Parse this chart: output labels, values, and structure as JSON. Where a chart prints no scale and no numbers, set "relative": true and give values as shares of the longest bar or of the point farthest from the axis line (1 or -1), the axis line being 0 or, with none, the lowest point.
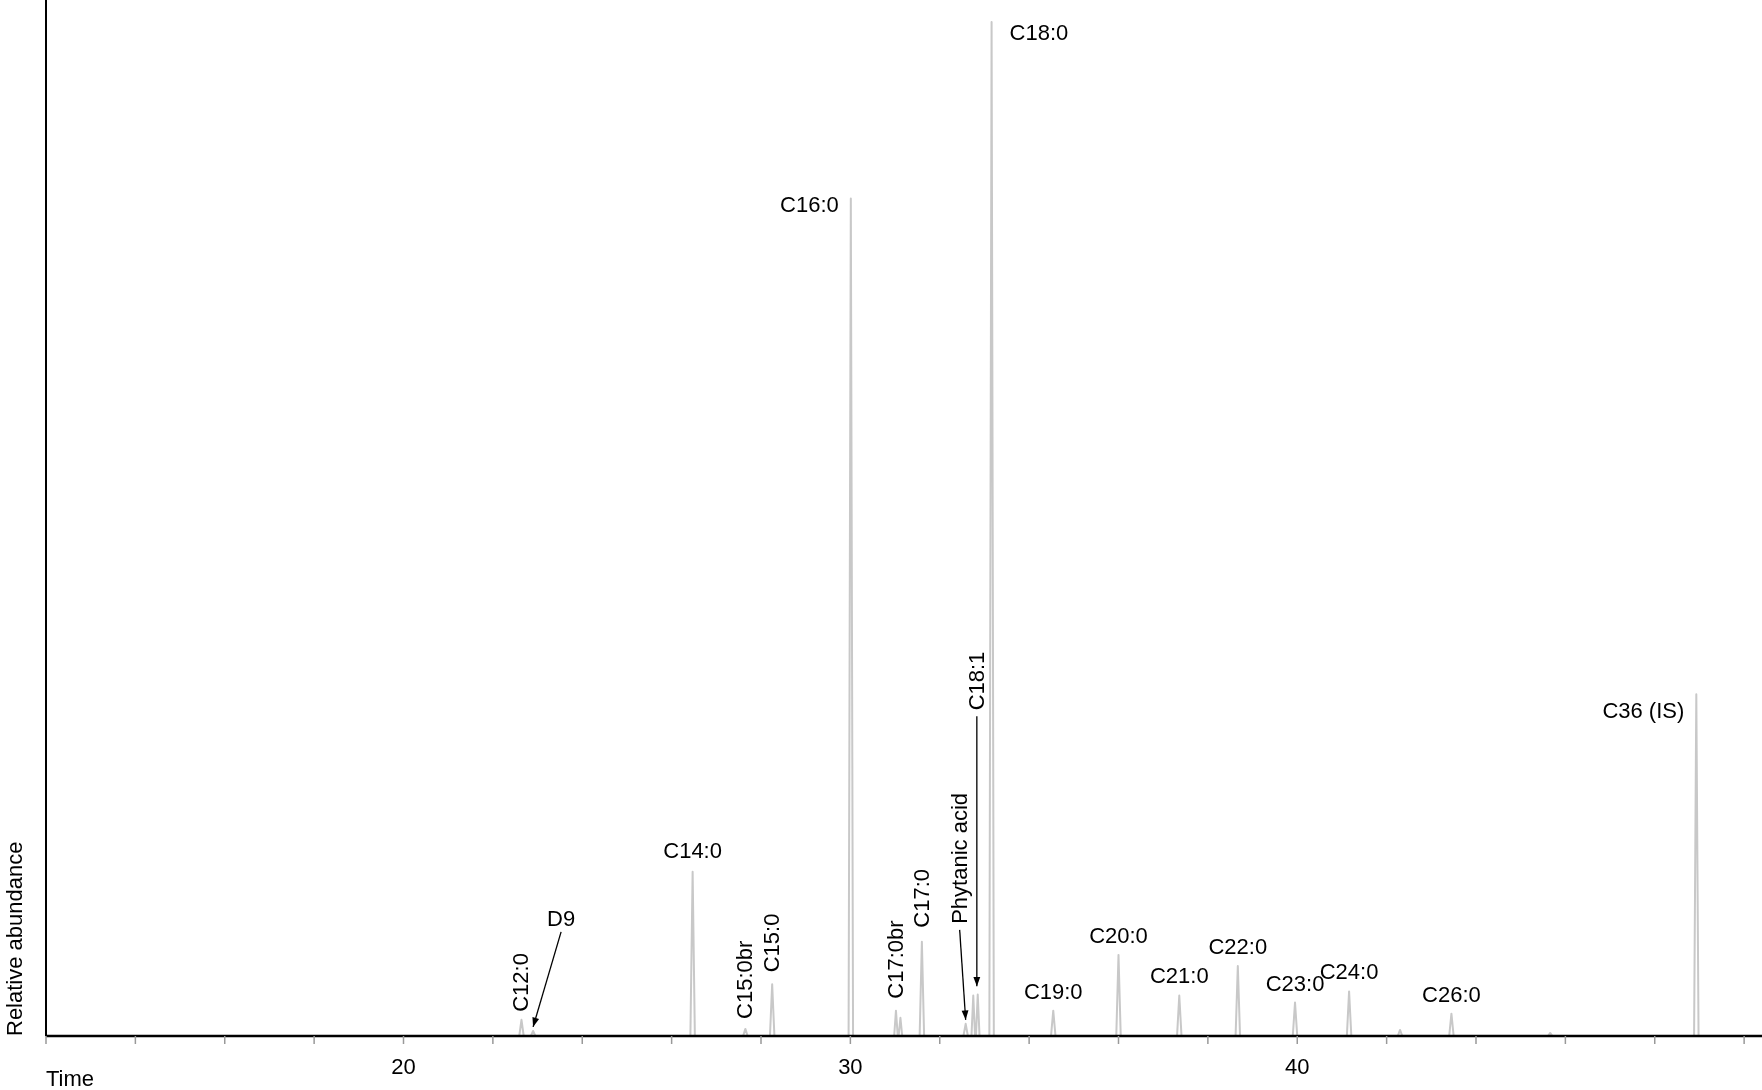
{
  "chart_data": {
    "type": "line",
    "relative": true,
    "xlabel": "Time",
    "ylabel": "Relative abundance",
    "x": [
      12,
      22.59,
      22.64,
      22.69,
      22.85,
      22.9,
      22.95,
      26.42,
      26.47,
      26.52,
      27.6,
      27.65,
      27.7,
      28.2,
      28.25,
      28.3,
      29.96,
      30.01,
      30.06,
      30.98,
      31.02,
      31.06,
      31.08,
      31.12,
      31.16,
      31.55,
      31.6,
      31.65,
      32.53,
      32.58,
      32.63,
      32.71,
      32.75,
      32.79,
      32.81,
      32.85,
      32.89,
      33.11,
      33.16,
      33.21,
      34.49,
      34.54,
      34.59,
      35.95,
      36.0,
      36.05,
      37.31,
      37.36,
      37.41,
      38.62,
      38.67,
      38.72,
      39.9,
      39.95,
      40.0,
      41.11,
      41.16,
      41.21,
      42.25,
      42.3,
      42.35,
      43.4,
      43.45,
      43.5,
      45.61,
      45.66,
      45.71,
      48.88,
      48.93,
      48.98,
      50.4
    ],
    "series": [
      {
        "color": "#c8c8c8",
        "values": [
          0,
          0,
          0.016,
          0,
          0,
          0.005,
          0,
          0,
          0.162,
          0,
          0,
          0.007,
          0,
          0,
          0.051,
          0,
          0,
          0.826,
          0,
          0,
          0.025,
          0,
          0,
          0.018,
          0,
          0,
          0.093,
          0,
          0,
          0.012,
          0,
          0,
          0.04,
          0,
          0,
          0.041,
          0,
          0,
          1.0,
          0,
          0,
          0.025,
          0,
          0,
          0.08,
          0,
          0,
          0.04,
          0,
          0,
          0.069,
          0,
          0,
          0.033,
          0,
          0,
          0.044,
          0,
          0,
          0.006,
          0,
          0,
          0.022,
          0,
          0,
          0.003,
          0,
          0,
          0.337,
          0,
          0
        ]
      }
    ],
    "xlim": [
      12,
      50.4
    ],
    "xticks": [
      {
        "value": 12,
        "label": null
      },
      {
        "value": 14,
        "label": null
      },
      {
        "value": 16,
        "label": null
      },
      {
        "value": 18,
        "label": null
      },
      20,
      {
        "value": 22,
        "label": null
      },
      {
        "value": 24,
        "label": null
      },
      {
        "value": 26,
        "label": null
      },
      {
        "value": 28,
        "label": null
      },
      30,
      {
        "value": 32,
        "label": null
      },
      {
        "value": 34,
        "label": null
      },
      {
        "value": 36,
        "label": null
      },
      {
        "value": 38,
        "label": null
      },
      40,
      {
        "value": 42,
        "label": null
      },
      {
        "value": 44,
        "label": null
      },
      {
        "value": 46,
        "label": null
      },
      {
        "value": 48,
        "label": null
      },
      {
        "value": 50,
        "label": null
      }
    ],
    "line_style": "solid",
    "annotations": [
      {
        "text": "C12:0",
        "x": 22.64,
        "y": 0.016
      },
      {
        "text": "D9",
        "x": 22.9,
        "y": 0.005
      },
      {
        "text": "C14:0",
        "x": 26.47,
        "y": 0.162
      },
      {
        "text": "C15:0br",
        "x": 27.65,
        "y": 0.007
      },
      {
        "text": "C15:0",
        "x": 28.25,
        "y": 0.051
      },
      {
        "text": "C16:0",
        "x": 30.01,
        "y": 0.826
      },
      {
        "text": "C17:0br",
        "x": 31.02,
        "y": 0.025
      },
      {
        "text": "C17:0",
        "x": 31.6,
        "y": 0.093
      },
      {
        "text": "Phytanic acid",
        "x": 32.58,
        "y": 0.012
      },
      {
        "text": "C18:1",
        "x": 32.83,
        "y": 0.045
      },
      {
        "text": "C18:0",
        "x": 33.16,
        "y": 1.0
      },
      {
        "text": "C19:0",
        "x": 34.54,
        "y": 0.025
      },
      {
        "text": "C20:0",
        "x": 36.0,
        "y": 0.08
      },
      {
        "text": "C21:0",
        "x": 37.36,
        "y": 0.04
      },
      {
        "text": "C22:0",
        "x": 38.67,
        "y": 0.069
      },
      {
        "text": "C23:0",
        "x": 39.95,
        "y": 0.033
      },
      {
        "text": "C24:0",
        "x": 41.16,
        "y": 0.044
      },
      {
        "text": "C26:0",
        "x": 43.45,
        "y": 0.022
      },
      {
        "text": "C36 (IS)",
        "x": 48.93,
        "y": 0.337
      }
    ]
  }
}
